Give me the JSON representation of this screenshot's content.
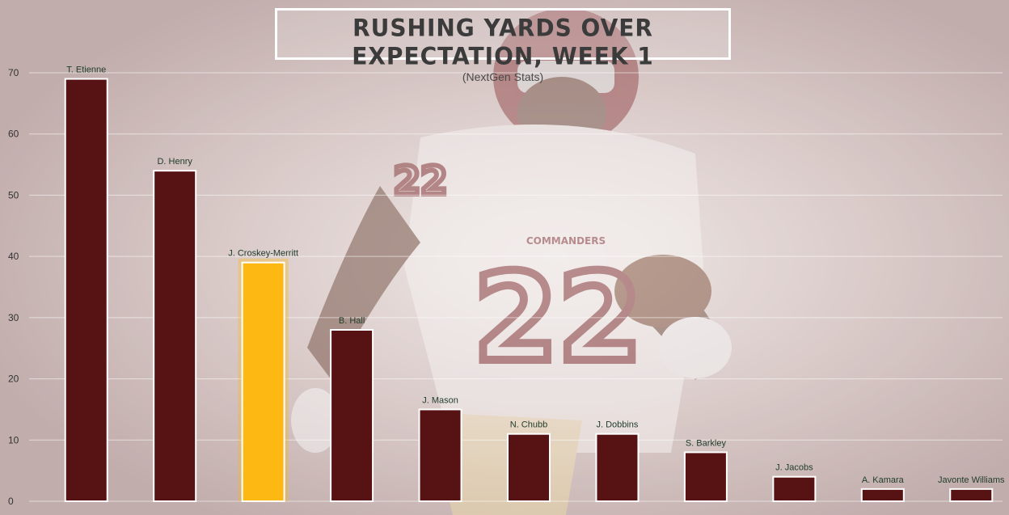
{
  "chart_data": {
    "type": "bar",
    "title": "RUSHING YARDS OVER EXPECTATION, WEEK 1",
    "subtitle": "(NextGen Stats)",
    "xlabel": "",
    "ylabel": "",
    "ylim": [
      0,
      70
    ],
    "yticks": [
      0,
      10,
      20,
      30,
      40,
      50,
      60,
      70
    ],
    "grid": true,
    "categories": [
      "T. Etienne",
      "D. Henry",
      "J. Croskey-Merritt",
      "B. Hall",
      "J. Mason",
      "N. Chubb",
      "J. Dobbins",
      "S. Barkley",
      "J. Jacobs",
      "A. Kamara",
      "Javonte Williams"
    ],
    "values": [
      69,
      54,
      39,
      28,
      15,
      11,
      11,
      8,
      4,
      2,
      2
    ],
    "highlight": "J. Croskey-Merritt"
  },
  "colors": {
    "bar": "#571214",
    "highlight": "#fdb813",
    "label": "#1f3b2b",
    "axis_text": "#333333"
  },
  "background": {
    "description_icon": "player-photo-icon",
    "jersey_text": "COMMANDERS",
    "jersey_number": "22"
  }
}
